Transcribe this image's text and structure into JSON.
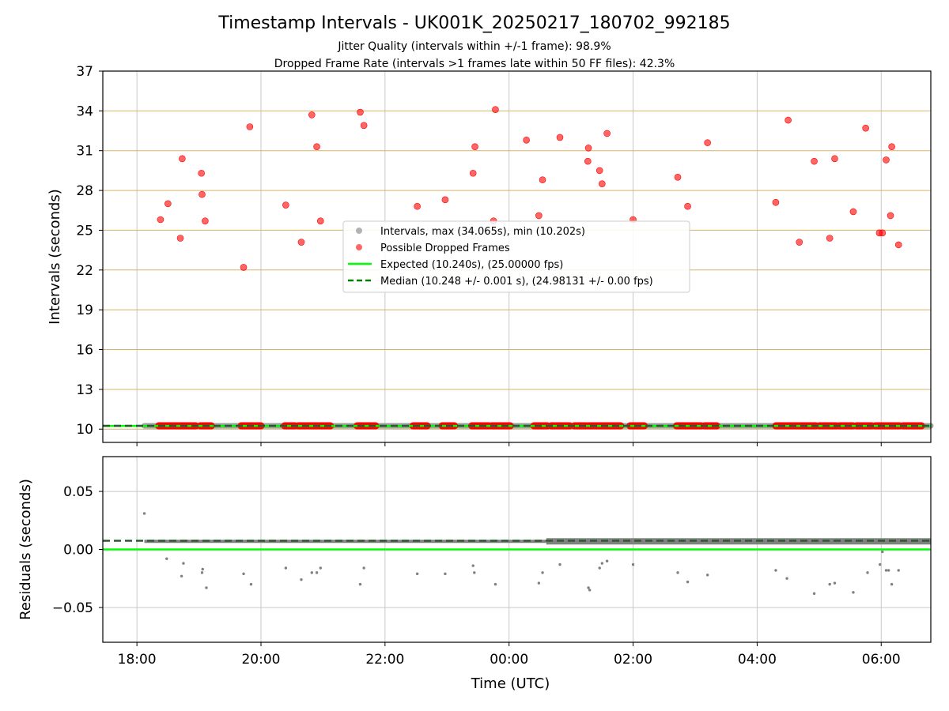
{
  "title": "Timestamp Intervals - UK001K_20250217_180702_992185",
  "subtitle_1": "Jitter Quality (intervals within +/-1 frame): 98.9%",
  "subtitle_2": "Dropped Frame Rate (intervals >1 frames late within 50 FF files): 42.3%",
  "colors": {
    "intervals": "#a0a0a0",
    "dropped": "#ff0000",
    "expected": "#00ff00",
    "median": "#008000",
    "hgrid_top": "#d4b46c",
    "grid": "#c8c8c8",
    "residual_points": "#808080"
  },
  "chart_data": [
    {
      "type": "scatter",
      "panel": "top",
      "ylabel": "Intervals (seconds)",
      "xlabel": "",
      "xlim_hours": [
        17.45,
        30.8
      ],
      "ylim": [
        9,
        37
      ],
      "y_ticks": [
        10,
        13,
        16,
        19,
        22,
        25,
        28,
        31,
        34,
        37
      ],
      "x_ticks": [
        {
          "hour": 18,
          "label": "18:00"
        },
        {
          "hour": 20,
          "label": "20:00"
        },
        {
          "hour": 22,
          "label": "22:00"
        },
        {
          "hour": 24,
          "label": "00:00"
        },
        {
          "hour": 26,
          "label": "02:00"
        },
        {
          "hour": 28,
          "label": "04:00"
        },
        {
          "hour": 30,
          "label": "06:00"
        }
      ],
      "grid": true,
      "legend_position": "center",
      "legend": [
        {
          "label": "Intervals, max (34.065s), min (10.202s)",
          "kind": "intervals"
        },
        {
          "label": "Possible Dropped Frames",
          "kind": "dropped"
        },
        {
          "label": "Expected (10.240s), (25.00000 fps)",
          "kind": "expected"
        },
        {
          "label": "Median (10.248 +/- 0.001 s), (24.98131 +/- 0.00 fps)",
          "kind": "median"
        }
      ],
      "expected_value": 10.24,
      "median_value": 10.248,
      "intervals_band": {
        "x_start_hour": 18.12,
        "x_end_hour": 30.8,
        "y": 10.25
      },
      "series": [
        {
          "name": "Possible Dropped Frames",
          "points": [
            [
              18.38,
              25.8
            ],
            [
              18.5,
              27.0
            ],
            [
              18.7,
              24.4
            ],
            [
              18.73,
              30.4
            ],
            [
              19.04,
              29.3
            ],
            [
              19.05,
              27.7
            ],
            [
              19.1,
              25.7
            ],
            [
              19.72,
              22.2
            ],
            [
              19.82,
              32.8
            ],
            [
              20.4,
              26.9
            ],
            [
              20.65,
              24.1
            ],
            [
              20.82,
              33.7
            ],
            [
              20.9,
              31.3
            ],
            [
              20.96,
              25.7
            ],
            [
              21.6,
              33.9
            ],
            [
              21.66,
              32.9
            ],
            [
              22.52,
              26.8
            ],
            [
              22.97,
              27.3
            ],
            [
              23.42,
              29.3
            ],
            [
              23.45,
              31.3
            ],
            [
              23.75,
              25.7
            ],
            [
              23.78,
              34.1
            ],
            [
              24.28,
              31.8
            ],
            [
              24.48,
              26.1
            ],
            [
              24.54,
              28.8
            ],
            [
              24.82,
              32.0
            ],
            [
              25.28,
              31.2
            ],
            [
              25.27,
              30.2
            ],
            [
              25.46,
              29.5
            ],
            [
              25.5,
              28.5
            ],
            [
              25.58,
              32.3
            ],
            [
              26.0,
              25.8
            ],
            [
              26.72,
              29.0
            ],
            [
              26.88,
              26.8
            ],
            [
              27.2,
              31.6
            ],
            [
              28.3,
              27.1
            ],
            [
              28.5,
              33.3
            ],
            [
              28.68,
              24.1
            ],
            [
              28.92,
              30.2
            ],
            [
              29.17,
              24.4
            ],
            [
              29.25,
              30.4
            ],
            [
              29.55,
              26.4
            ],
            [
              29.75,
              32.7
            ],
            [
              29.97,
              24.8
            ],
            [
              30.02,
              24.8
            ],
            [
              30.08,
              30.3
            ],
            [
              30.15,
              26.1
            ],
            [
              30.17,
              31.3
            ],
            [
              30.28,
              23.9
            ]
          ],
          "baseline_ranges": [
            [
              18.35,
              18.95
            ],
            [
              19.02,
              19.2
            ],
            [
              19.68,
              20.0
            ],
            [
              20.38,
              20.55
            ],
            [
              20.6,
              21.12
            ],
            [
              21.55,
              21.85
            ],
            [
              22.45,
              22.68
            ],
            [
              22.92,
              23.12
            ],
            [
              23.4,
              23.68
            ],
            [
              23.72,
              24.02
            ],
            [
              24.4,
              24.62
            ],
            [
              24.68,
              24.98
            ],
            [
              25.05,
              25.25
            ],
            [
              25.28,
              25.8
            ],
            [
              25.95,
              26.18
            ],
            [
              26.7,
              27.1
            ],
            [
              27.15,
              27.35
            ],
            [
              28.3,
              28.95
            ],
            [
              29.0,
              29.28
            ],
            [
              29.32,
              29.55
            ],
            [
              29.6,
              29.85
            ],
            [
              29.9,
              30.3
            ],
            [
              30.35,
              30.65
            ]
          ]
        }
      ]
    },
    {
      "type": "scatter",
      "panel": "bottom",
      "ylabel": "Residuals (seconds)",
      "xlabel": "Time (UTC)",
      "xlim_hours": [
        17.45,
        30.8
      ],
      "ylim": [
        -0.08,
        0.08
      ],
      "y_ticks": [
        {
          "value": -0.05,
          "label": "−0.05"
        },
        {
          "value": 0.0,
          "label": "0.00"
        },
        {
          "value": 0.05,
          "label": "0.05"
        }
      ],
      "x_ticks": [
        {
          "hour": 18,
          "label": "18:00"
        },
        {
          "hour": 20,
          "label": "20:00"
        },
        {
          "hour": 22,
          "label": "22:00"
        },
        {
          "hour": 24,
          "label": "00:00"
        },
        {
          "hour": 26,
          "label": "02:00"
        },
        {
          "hour": 28,
          "label": "04:00"
        },
        {
          "hour": 30,
          "label": "06:00"
        }
      ],
      "grid": true,
      "expected_value": 0.0,
      "median_value": 0.0075,
      "residual_band": {
        "x_start_hour": 18.12,
        "x_end_hour": 30.8,
        "y": 0.007
      },
      "series": [
        {
          "name": "Residuals (outliers)",
          "points": [
            [
              18.12,
              0.031
            ],
            [
              18.48,
              -0.008
            ],
            [
              18.72,
              -0.023
            ],
            [
              18.75,
              -0.012
            ],
            [
              19.05,
              -0.02
            ],
            [
              19.06,
              -0.017
            ],
            [
              19.12,
              -0.033
            ],
            [
              19.72,
              -0.021
            ],
            [
              19.84,
              -0.03
            ],
            [
              20.4,
              -0.016
            ],
            [
              20.65,
              -0.026
            ],
            [
              20.82,
              -0.02
            ],
            [
              20.9,
              -0.02
            ],
            [
              20.96,
              -0.016
            ],
            [
              21.6,
              -0.03
            ],
            [
              21.66,
              -0.016
            ],
            [
              22.52,
              -0.021
            ],
            [
              22.97,
              -0.021
            ],
            [
              23.42,
              -0.014
            ],
            [
              23.44,
              -0.02
            ],
            [
              23.78,
              -0.03
            ],
            [
              24.48,
              -0.029
            ],
            [
              24.54,
              -0.02
            ],
            [
              24.82,
              -0.013
            ],
            [
              25.28,
              -0.033
            ],
            [
              25.3,
              -0.035
            ],
            [
              25.46,
              -0.016
            ],
            [
              25.5,
              -0.012
            ],
            [
              25.58,
              -0.01
            ],
            [
              26.0,
              -0.013
            ],
            [
              26.72,
              -0.02
            ],
            [
              26.88,
              -0.028
            ],
            [
              27.2,
              -0.022
            ],
            [
              28.3,
              -0.018
            ],
            [
              28.48,
              -0.025
            ],
            [
              28.92,
              -0.038
            ],
            [
              29.17,
              -0.03
            ],
            [
              29.25,
              -0.029
            ],
            [
              29.55,
              -0.037
            ],
            [
              29.78,
              -0.02
            ],
            [
              29.98,
              -0.013
            ],
            [
              30.02,
              -0.002
            ],
            [
              30.08,
              -0.018
            ],
            [
              30.12,
              -0.018
            ],
            [
              30.17,
              -0.03
            ],
            [
              30.28,
              -0.018
            ]
          ]
        }
      ]
    }
  ]
}
